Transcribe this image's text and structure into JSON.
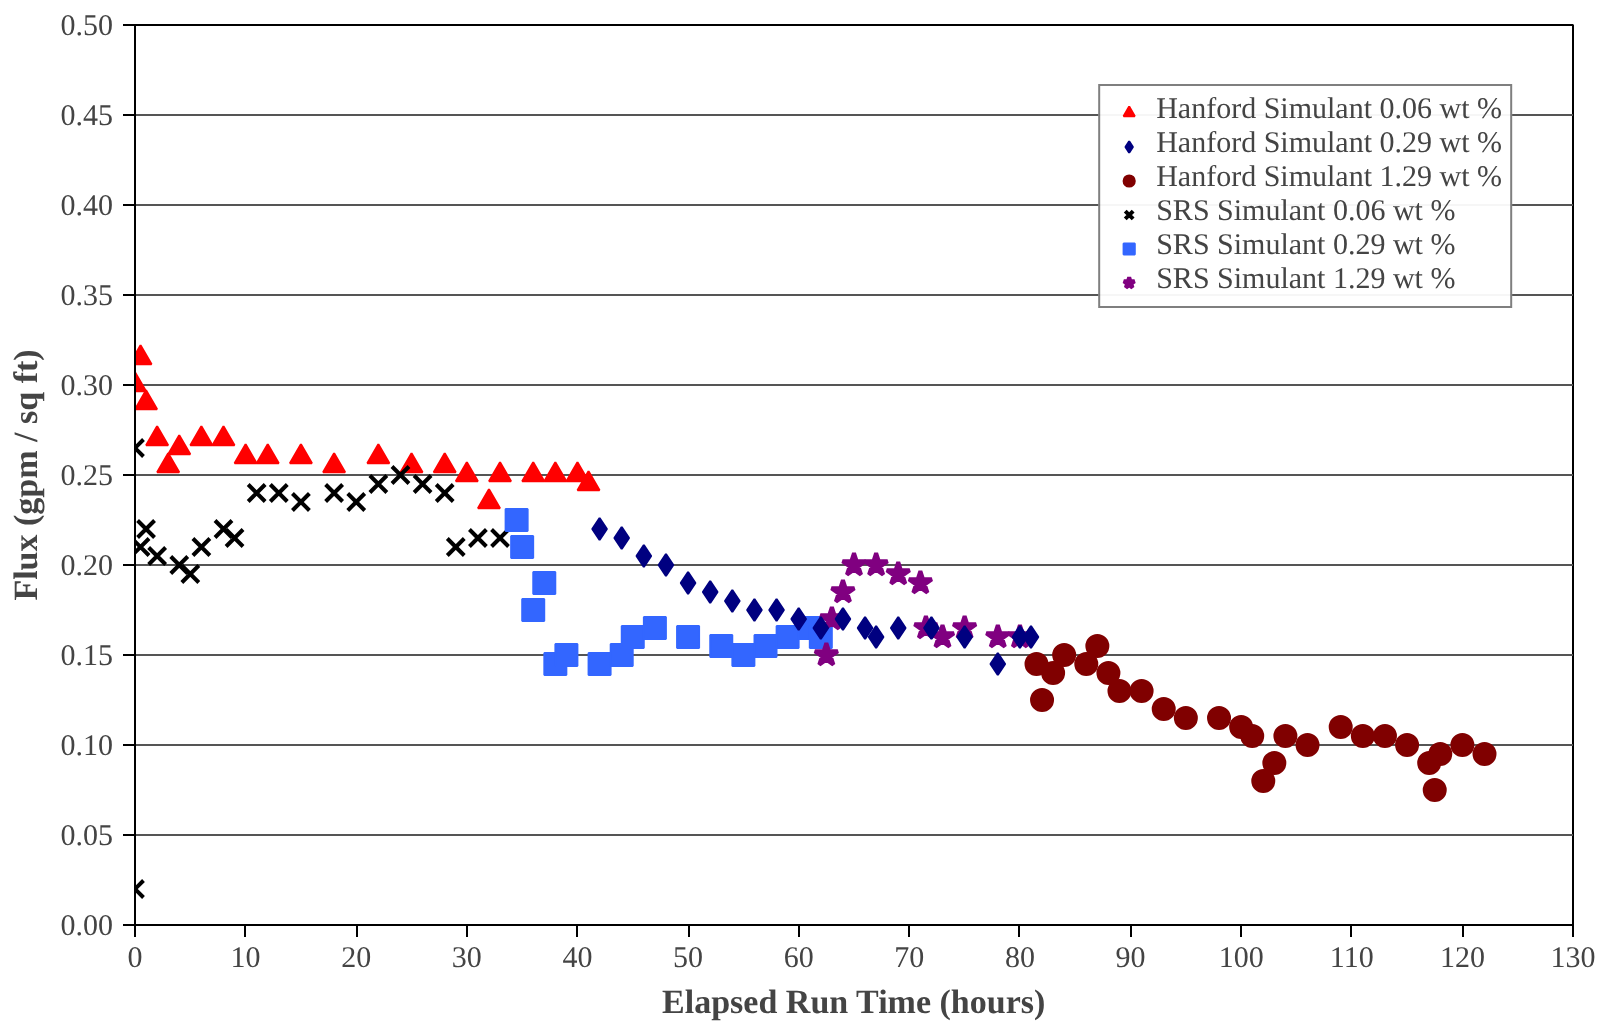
{
  "chart_data": {
    "type": "scatter",
    "xlabel": "Elapsed Run Time (hours)",
    "ylabel": "Flux (gpm / sq ft)",
    "xlim": [
      0,
      130
    ],
    "xticks": [
      0,
      10,
      20,
      30,
      40,
      50,
      60,
      70,
      80,
      90,
      100,
      110,
      120,
      130
    ],
    "ylim": [
      0,
      0.5
    ],
    "yticks": [
      {
        "value": 0,
        "label": "0.00"
      },
      {
        "value": 0.05,
        "label": "0.05"
      },
      {
        "value": 0.1,
        "label": "0.10"
      },
      {
        "value": 0.15,
        "label": "0.15"
      },
      {
        "value": 0.2,
        "label": "0.20"
      },
      {
        "value": 0.25,
        "label": "0.25"
      },
      {
        "value": 0.3,
        "label": "0.30"
      },
      {
        "value": 0.35,
        "label": "0.35"
      },
      {
        "value": 0.4,
        "label": "0.40"
      },
      {
        "value": 0.45,
        "label": "0.45"
      },
      {
        "value": 0.5,
        "label": "0.50"
      }
    ],
    "grid": "y",
    "legend": "top right",
    "series": [
      {
        "name": "Hanford Simulant 0.06 wt %",
        "color": "#ff0000",
        "marker": "triangle",
        "x": [
          0,
          0.5,
          1,
          2,
          3,
          4,
          6,
          8,
          10,
          12,
          15,
          18,
          22,
          25,
          28,
          30,
          32,
          33,
          36,
          38,
          40,
          41
        ],
        "values": [
          0.3,
          0.315,
          0.29,
          0.27,
          0.255,
          0.265,
          0.27,
          0.27,
          0.26,
          0.26,
          0.26,
          0.255,
          0.26,
          0.255,
          0.255,
          0.25,
          0.235,
          0.25,
          0.25,
          0.25,
          0.25,
          0.245
        ]
      },
      {
        "name": "Hanford Simulant 0.29 wt %",
        "color": "#000080",
        "marker": "diamond",
        "x": [
          42,
          44,
          46,
          48,
          50,
          52,
          54,
          56,
          58,
          60,
          62,
          64,
          66,
          67,
          69,
          72,
          75,
          78,
          80,
          81
        ],
        "values": [
          0.22,
          0.215,
          0.205,
          0.2,
          0.19,
          0.185,
          0.18,
          0.175,
          0.175,
          0.17,
          0.165,
          0.17,
          0.165,
          0.16,
          0.165,
          0.165,
          0.16,
          0.145,
          0.16,
          0.16
        ]
      },
      {
        "name": "Hanford Simulant 1.29 wt %",
        "color": "#800000",
        "marker": "circle",
        "x": [
          81.5,
          82,
          83,
          84,
          86,
          87,
          88,
          89,
          91,
          93,
          95,
          98,
          100,
          101,
          102,
          103,
          104,
          106,
          109,
          111,
          113,
          115,
          117,
          117.5,
          118,
          120,
          122
        ],
        "values": [
          0.145,
          0.125,
          0.14,
          0.15,
          0.145,
          0.155,
          0.14,
          0.13,
          0.13,
          0.12,
          0.115,
          0.115,
          0.11,
          0.105,
          0.08,
          0.09,
          0.105,
          0.1,
          0.11,
          0.105,
          0.105,
          0.1,
          0.09,
          0.075,
          0.095,
          0.1,
          0.095
        ]
      },
      {
        "name": "SRS Simulant 0.06 wt %",
        "color": "#000000",
        "marker": "cross",
        "x": [
          0,
          0,
          0.5,
          1,
          2,
          4,
          5,
          6,
          8,
          9,
          11,
          13,
          15,
          18,
          20,
          22,
          24,
          26,
          28,
          29,
          31,
          33
        ],
        "values": [
          0.02,
          0.265,
          0.21,
          0.22,
          0.205,
          0.2,
          0.195,
          0.21,
          0.22,
          0.215,
          0.24,
          0.24,
          0.235,
          0.24,
          0.235,
          0.245,
          0.25,
          0.245,
          0.24,
          0.21,
          0.215,
          0.215
        ]
      },
      {
        "name": "SRS Simulant 0.29 wt %",
        "color": "#3366ff",
        "marker": "square",
        "x": [
          34.5,
          35,
          36,
          37,
          38,
          39,
          42,
          44,
          45,
          47,
          50,
          53,
          55,
          57,
          59,
          61,
          62
        ],
        "values": [
          0.225,
          0.21,
          0.175,
          0.19,
          0.145,
          0.15,
          0.145,
          0.15,
          0.16,
          0.165,
          0.16,
          0.155,
          0.15,
          0.155,
          0.16,
          0.165,
          0.16
        ]
      },
      {
        "name": "SRS Simulant 1.29 wt %",
        "color": "#800080",
        "marker": "star",
        "x": [
          62.5,
          63,
          64,
          65,
          67,
          69,
          71,
          71.5,
          73,
          75,
          78,
          80
        ],
        "values": [
          0.15,
          0.17,
          0.185,
          0.2,
          0.2,
          0.195,
          0.19,
          0.165,
          0.16,
          0.165,
          0.16,
          0.16
        ]
      }
    ]
  }
}
